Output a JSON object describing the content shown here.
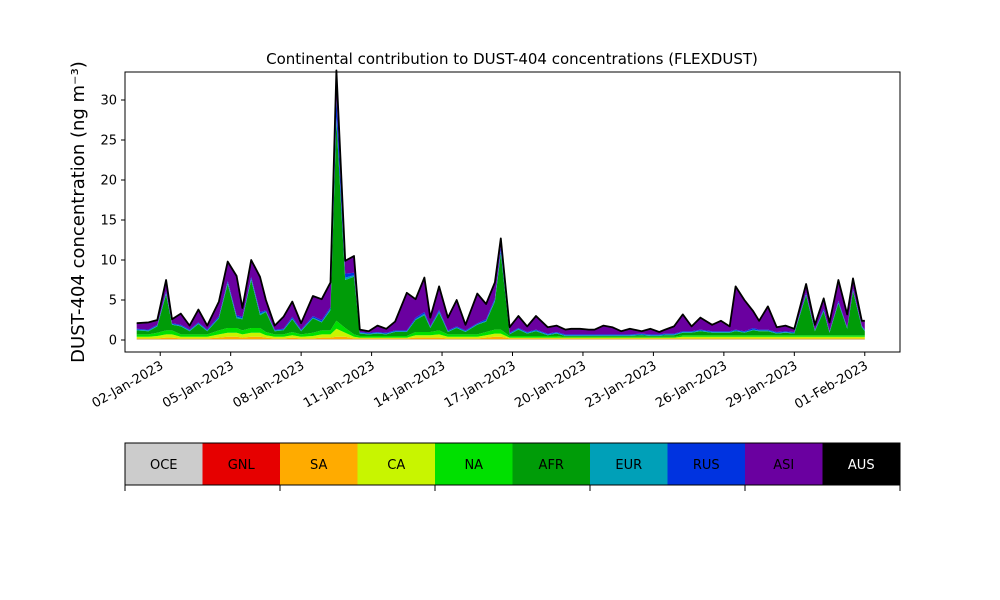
{
  "chart_data": {
    "type": "area",
    "title": "Continental contribution to DUST-404 concentrations (FLEXDUST)",
    "ylabel": "DUST-404 concentration (ng m⁻³)",
    "xlabel": "",
    "ylim": [
      -1.5,
      33.5
    ],
    "xlim": [
      "2022-12-31T12:00",
      "2023-02-02T12:00"
    ],
    "y_ticks": [
      0,
      5,
      10,
      15,
      20,
      25,
      30
    ],
    "x_ticks": [
      "2023-01-02",
      "2023-01-05",
      "2023-01-08",
      "2023-01-11",
      "2023-01-14",
      "2023-01-17",
      "2023-01-20",
      "2023-01-23",
      "2023-01-26",
      "2023-01-29",
      "2023-02-01"
    ],
    "x_tick_labels": [
      "02-Jan-2023",
      "05-Jan-2023",
      "08-Jan-2023",
      "11-Jan-2023",
      "14-Jan-2023",
      "17-Jan-2023",
      "20-Jan-2023",
      "23-Jan-2023",
      "26-Jan-2023",
      "29-Jan-2023",
      "01-Feb-2023"
    ],
    "grid": false,
    "stacked": true,
    "x": [
      "2023-01-01T00:00",
      "2023-01-01T12:00",
      "2023-01-01T21:00",
      "2023-01-02T06:00",
      "2023-01-02T12:00",
      "2023-01-02T21:00",
      "2023-01-03T06:00",
      "2023-01-03T15:00",
      "2023-01-04T00:00",
      "2023-01-04T12:00",
      "2023-01-04T21:00",
      "2023-01-05T06:00",
      "2023-01-05T12:00",
      "2023-01-05T21:00",
      "2023-01-06T06:00",
      "2023-01-06T12:00",
      "2023-01-06T21:00",
      "2023-01-07T06:00",
      "2023-01-07T15:00",
      "2023-01-08T00:00",
      "2023-01-08T12:00",
      "2023-01-08T21:00",
      "2023-01-09T06:00",
      "2023-01-09T12:00",
      "2023-01-09T21:00",
      "2023-01-10T06:00",
      "2023-01-10T12:00",
      "2023-01-10T21:00",
      "2023-01-11T06:00",
      "2023-01-11T15:00",
      "2023-01-12T00:00",
      "2023-01-12T12:00",
      "2023-01-12T21:00",
      "2023-01-13T06:00",
      "2023-01-13T12:00",
      "2023-01-13T21:00",
      "2023-01-14T06:00",
      "2023-01-14T15:00",
      "2023-01-15T00:00",
      "2023-01-15T12:00",
      "2023-01-15T21:00",
      "2023-01-16T06:00",
      "2023-01-16T12:00",
      "2023-01-16T21:00",
      "2023-01-17T06:00",
      "2023-01-17T15:00",
      "2023-01-18T00:00",
      "2023-01-18T12:00",
      "2023-01-18T21:00",
      "2023-01-19T06:00",
      "2023-01-19T12:00",
      "2023-01-19T21:00",
      "2023-01-20T06:00",
      "2023-01-20T12:00",
      "2023-01-20T21:00",
      "2023-01-21T06:00",
      "2023-01-21T15:00",
      "2023-01-22T00:00",
      "2023-01-22T12:00",
      "2023-01-22T21:00",
      "2023-01-23T06:00",
      "2023-01-23T12:00",
      "2023-01-23T21:00",
      "2023-01-24T06:00",
      "2023-01-24T15:00",
      "2023-01-25T00:00",
      "2023-01-25T12:00",
      "2023-01-25T21:00",
      "2023-01-26T06:00",
      "2023-01-26T12:00",
      "2023-01-26T21:00",
      "2023-01-27T06:00",
      "2023-01-27T12:00",
      "2023-01-27T21:00",
      "2023-01-28T06:00",
      "2023-01-28T15:00",
      "2023-01-29T00:00",
      "2023-01-29T12:00",
      "2023-01-29T21:00",
      "2023-01-30T06:00",
      "2023-01-30T12:00",
      "2023-01-30T21:00",
      "2023-01-31T06:00",
      "2023-01-31T12:00",
      "2023-01-31T21:00",
      "2023-02-01T00:00"
    ],
    "series": [
      {
        "name": "OCE",
        "values": [
          0.1,
          0.1,
          0.1,
          0.1,
          0.1,
          0.1,
          0.1,
          0.1,
          0.1,
          0.1,
          0.1,
          0.1,
          0.1,
          0.1,
          0.1,
          0.1,
          0.1,
          0.1,
          0.1,
          0.1,
          0.1,
          0.1,
          0.1,
          0.1,
          0.1,
          0.1,
          0.1,
          0.1,
          0.1,
          0.1,
          0.1,
          0.1,
          0.1,
          0.1,
          0.1,
          0.1,
          0.1,
          0.1,
          0.1,
          0.1,
          0.1,
          0.1,
          0.1,
          0.1,
          0.1,
          0.1,
          0.1,
          0.1,
          0.1,
          0.1,
          0.1,
          0.1,
          0.1,
          0.1,
          0.1,
          0.1,
          0.1,
          0.1,
          0.1,
          0.1,
          0.1,
          0.1,
          0.1,
          0.1,
          0.1,
          0.1,
          0.1,
          0.1,
          0.1,
          0.1,
          0.1,
          0.1,
          0.1,
          0.1,
          0.1,
          0.1,
          0.1,
          0.1,
          0.1,
          0.1,
          0.1,
          0.1,
          0.1,
          0.1,
          0.1,
          0.1
        ]
      },
      {
        "name": "GNL",
        "values": [
          0,
          0,
          0,
          0,
          0,
          0,
          0,
          0,
          0,
          0,
          0,
          0,
          0,
          0,
          0,
          0,
          0,
          0,
          0,
          0,
          0,
          0,
          0,
          0,
          0,
          0,
          0,
          0,
          0,
          0,
          0,
          0,
          0,
          0,
          0,
          0,
          0,
          0,
          0,
          0,
          0,
          0,
          0,
          0,
          0,
          0,
          0,
          0,
          0,
          0,
          0,
          0,
          0,
          0,
          0,
          0,
          0,
          0,
          0,
          0,
          0,
          0,
          0,
          0,
          0,
          0,
          0,
          0,
          0,
          0,
          0,
          0,
          0,
          0,
          0,
          0,
          0,
          0,
          0,
          0,
          0,
          0,
          0,
          0,
          0,
          0
        ]
      },
      {
        "name": "SA",
        "values": [
          0.1,
          0.1,
          0.1,
          0.2,
          0.2,
          0.1,
          0.1,
          0.1,
          0.1,
          0.2,
          0.3,
          0.3,
          0.2,
          0.3,
          0.3,
          0.2,
          0.1,
          0.1,
          0.2,
          0.1,
          0.1,
          0.2,
          0.2,
          0.3,
          0.3,
          0.1,
          0.1,
          0.1,
          0.1,
          0.1,
          0.1,
          0.1,
          0.2,
          0.2,
          0.2,
          0.2,
          0.1,
          0.1,
          0.1,
          0.1,
          0.2,
          0.3,
          0.3,
          0.1,
          0.1,
          0.1,
          0.1,
          0.1,
          0.1,
          0.1,
          0.1,
          0.1,
          0.1,
          0.1,
          0.1,
          0.1,
          0.1,
          0.1,
          0.1,
          0.1,
          0.1,
          0.1,
          0.1,
          0.1,
          0.1,
          0.1,
          0.1,
          0.1,
          0.1,
          0.1,
          0.1,
          0.1,
          0.1,
          0.1,
          0.1,
          0.1,
          0.1,
          0.1,
          0.1,
          0.1,
          0.1,
          0.1,
          0.1,
          0.1,
          0.1,
          0.1
        ]
      },
      {
        "name": "CA",
        "values": [
          0.2,
          0.2,
          0.3,
          0.4,
          0.4,
          0.2,
          0.2,
          0.2,
          0.2,
          0.4,
          0.5,
          0.5,
          0.4,
          0.5,
          0.5,
          0.3,
          0.2,
          0.2,
          0.3,
          0.2,
          0.3,
          0.4,
          0.4,
          1.0,
          0.5,
          0.2,
          0.1,
          0.1,
          0.1,
          0.1,
          0.1,
          0.1,
          0.3,
          0.3,
          0.3,
          0.4,
          0.2,
          0.2,
          0.2,
          0.2,
          0.3,
          0.4,
          0.4,
          0.1,
          0.1,
          0.1,
          0.1,
          0.1,
          0.1,
          0.1,
          0.1,
          0.1,
          0.1,
          0.1,
          0.1,
          0.1,
          0.1,
          0.1,
          0.1,
          0.1,
          0.1,
          0.1,
          0.1,
          0.2,
          0.2,
          0.2,
          0.2,
          0.2,
          0.2,
          0.2,
          0.2,
          0.2,
          0.2,
          0.2,
          0.2,
          0.2,
          0.2,
          0.2,
          0.2,
          0.2,
          0.2,
          0.2,
          0.2,
          0.2,
          0.2,
          0.2
        ]
      },
      {
        "name": "NA",
        "values": [
          0.3,
          0.3,
          0.4,
          0.5,
          0.5,
          0.3,
          0.3,
          0.3,
          0.3,
          0.5,
          0.6,
          0.6,
          0.5,
          0.6,
          0.6,
          0.4,
          0.3,
          0.3,
          0.4,
          0.3,
          0.4,
          0.5,
          0.5,
          1.0,
          0.6,
          0.3,
          0.2,
          0.2,
          0.2,
          0.2,
          0.2,
          0.2,
          0.4,
          0.4,
          0.4,
          0.5,
          0.3,
          0.3,
          0.3,
          0.3,
          0.4,
          0.5,
          0.5,
          0.2,
          0.2,
          0.2,
          0.2,
          0.2,
          0.2,
          0.1,
          0.1,
          0.1,
          0.1,
          0.1,
          0.1,
          0.1,
          0.1,
          0.1,
          0.1,
          0.1,
          0.1,
          0.1,
          0.1,
          0.2,
          0.2,
          0.2,
          0.2,
          0.2,
          0.2,
          0.2,
          0.2,
          0.2,
          0.2,
          0.2,
          0.2,
          0.2,
          0.2,
          0.2,
          0.2,
          0.2,
          0.2,
          0.2,
          0.2,
          0.2,
          0.2,
          0.2
        ]
      },
      {
        "name": "AFR",
        "values": [
          0.5,
          0.4,
          0.8,
          4.5,
          0.7,
          1.0,
          0.4,
          1.3,
          0.4,
          1.5,
          5.5,
          1.2,
          1.4,
          6.0,
          1.6,
          2.5,
          0.4,
          0.5,
          1.6,
          0.4,
          1.8,
          1.0,
          2.5,
          25.0,
          6.0,
          7.2,
          0.3,
          0.2,
          0.3,
          0.2,
          0.5,
          0.5,
          1.5,
          2.1,
          0.5,
          2.2,
          0.3,
          0.8,
          0.3,
          1.2,
          1.3,
          3.5,
          9.5,
          0.2,
          0.8,
          0.3,
          0.6,
          0.1,
          0.3,
          0.1,
          0.1,
          0.1,
          0.1,
          0.1,
          0.1,
          0.1,
          0.1,
          0.1,
          0.2,
          0.1,
          0.1,
          0.2,
          0.2,
          0.3,
          0.3,
          0.5,
          0.3,
          0.3,
          0.3,
          0.5,
          0.3,
          0.6,
          0.5,
          0.5,
          0.2,
          0.3,
          0.2,
          5.0,
          0.5,
          3.0,
          0.3,
          4.0,
          0.8,
          5.5,
          1.0,
          0.5
        ]
      },
      {
        "name": "EUR",
        "values": [
          0.1,
          0.1,
          0.1,
          0.2,
          0.1,
          0.1,
          0.1,
          0.1,
          0.1,
          0.1,
          0.2,
          0.2,
          0.1,
          0.2,
          0.2,
          0.1,
          0.1,
          0.1,
          0.1,
          0.1,
          0.1,
          0.1,
          0.2,
          0.5,
          0.3,
          0.2,
          0.1,
          0.1,
          0.1,
          0.1,
          0.1,
          0.1,
          0.1,
          0.2,
          0.1,
          0.2,
          0.1,
          0.1,
          0.1,
          0.1,
          0.1,
          0.2,
          0.3,
          0.1,
          0.1,
          0.1,
          0.1,
          0.1,
          0.1,
          0.1,
          0.1,
          0.1,
          0.1,
          0.1,
          0.1,
          0.1,
          0.1,
          0.1,
          0.1,
          0.1,
          0.1,
          0.1,
          0.1,
          0.1,
          0.1,
          0.1,
          0.1,
          0.1,
          0.1,
          0.1,
          0.1,
          0.1,
          0.1,
          0.1,
          0.1,
          0.1,
          0.1,
          0.1,
          0.1,
          0.1,
          0.1,
          0.1,
          0.1,
          0.1,
          0.1,
          0.1
        ]
      },
      {
        "name": "RUS",
        "values": [
          0.1,
          0.1,
          0.1,
          0.2,
          0.1,
          0.1,
          0.1,
          0.1,
          0.1,
          0.2,
          0.2,
          0.2,
          0.2,
          0.2,
          0.2,
          0.1,
          0.1,
          0.1,
          0.2,
          0.1,
          0.2,
          0.2,
          0.2,
          2.5,
          0.5,
          0.3,
          0.1,
          0.1,
          0.1,
          0.1,
          0.1,
          0.1,
          0.2,
          0.2,
          0.1,
          0.2,
          0.1,
          0.1,
          0.1,
          0.1,
          0.2,
          0.2,
          0.5,
          0.1,
          0.1,
          0.1,
          0.1,
          0.1,
          0.1,
          0.1,
          0.1,
          0.1,
          0.1,
          0.1,
          0.1,
          0.1,
          0.1,
          0.1,
          0.1,
          0.1,
          0.1,
          0.1,
          0.1,
          0.1,
          0.1,
          0.1,
          0.1,
          0.1,
          0.1,
          0.1,
          0.1,
          0.2,
          0.1,
          0.1,
          0.1,
          0.1,
          0.1,
          0.2,
          0.1,
          0.2,
          0.1,
          0.2,
          0.1,
          0.2,
          0.1,
          0.1
        ]
      },
      {
        "name": "ASI",
        "values": [
          0.6,
          0.8,
          0.5,
          1.3,
          0.4,
          1.3,
          0.4,
          1.5,
          0.4,
          1.7,
          2.3,
          4.8,
          1.0,
          2.0,
          4.3,
          1.2,
          0.4,
          1.4,
          1.8,
          0.7,
          2.4,
          2.5,
          3.0,
          3.2,
          1.5,
          2.0,
          0.2,
          0.1,
          0.7,
          0.4,
          1.0,
          4.6,
          2.2,
          4.2,
          1.0,
          2.8,
          1.5,
          3.2,
          0.6,
          3.6,
          1.8,
          1.9,
          1.0,
          0.6,
          1.4,
          0.6,
          1.6,
          0.7,
          0.7,
          0.5,
          0.6,
          0.6,
          0.5,
          0.5,
          1.0,
          0.8,
          0.3,
          0.6,
          0.2,
          0.6,
          0.2,
          0.4,
          0.8,
          2.0,
          0.5,
          1.4,
          0.7,
          1.2,
          0.5,
          5.3,
          3.8,
          2.0,
          1.0,
          2.8,
          0.5,
          0.6,
          0.3,
          1.0,
          0.5,
          1.2,
          1.0,
          2.5,
          1.5,
          1.2,
          0.5,
          1.0
        ]
      },
      {
        "name": "AUS",
        "values": [
          0.1,
          0.1,
          0.1,
          0.1,
          0.1,
          0.1,
          0.1,
          0.1,
          0.1,
          0.1,
          0.1,
          0.1,
          0.1,
          0.1,
          0.1,
          0.1,
          0.1,
          0.1,
          0.1,
          0.1,
          0.1,
          0.1,
          0.1,
          0.1,
          0.1,
          0.1,
          0.1,
          0.1,
          0.1,
          0.1,
          0.1,
          0.1,
          0.1,
          0.1,
          0.1,
          0.1,
          0.1,
          0.1,
          0.1,
          0.1,
          0.1,
          0.1,
          0.1,
          0.1,
          0.1,
          0.1,
          0.1,
          0.1,
          0.1,
          0.1,
          0.1,
          0.1,
          0.1,
          0.1,
          0.1,
          0.1,
          0.1,
          0.1,
          0.1,
          0.1,
          0.1,
          0.1,
          0.1,
          0.1,
          0.1,
          0.1,
          0.1,
          0.1,
          0.1,
          0.1,
          0.1,
          0.1,
          0.1,
          0.1,
          0.1,
          0.1,
          0.1,
          0.1,
          0.1,
          0.1,
          0.1,
          0.1,
          0.1,
          0.1,
          0.1,
          0.1
        ]
      }
    ],
    "legend": {
      "placement": "bottom-colorbar",
      "entries": [
        {
          "label": "OCE",
          "color": "#cccccc"
        },
        {
          "label": "GNL",
          "color": "#e60000"
        },
        {
          "label": "SA",
          "color": "#ffab00"
        },
        {
          "label": "CA",
          "color": "#c8f500"
        },
        {
          "label": "NA",
          "color": "#00e000"
        },
        {
          "label": "AFR",
          "color": "#009c08"
        },
        {
          "label": "EUR",
          "color": "#00a0b8"
        },
        {
          "label": "RUS",
          "color": "#0033e0"
        },
        {
          "label": "ASI",
          "color": "#6a00a0"
        },
        {
          "label": "AUS",
          "color": "#000000"
        }
      ]
    }
  }
}
